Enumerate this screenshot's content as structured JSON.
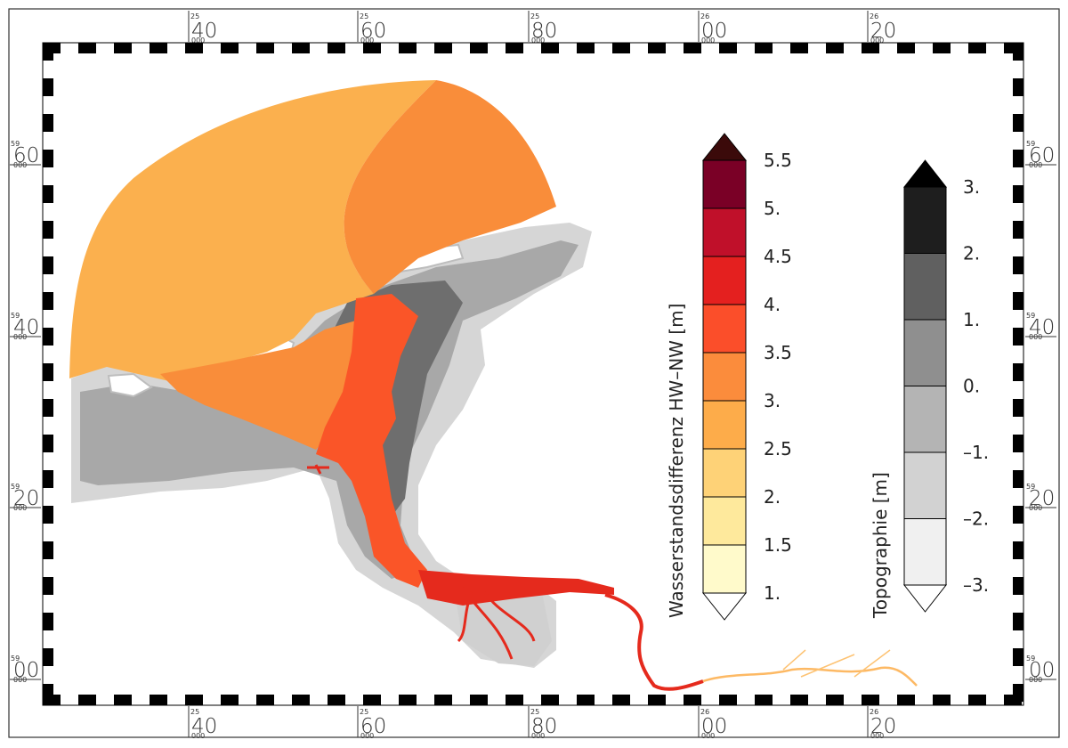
{
  "map": {
    "x_ticks": [
      {
        "prefix": "25",
        "value": "40",
        "sub": "000"
      },
      {
        "prefix": "25",
        "value": "60",
        "sub": "000"
      },
      {
        "prefix": "25",
        "value": "80",
        "sub": "000"
      },
      {
        "prefix": "26",
        "value": "00",
        "sub": "000"
      },
      {
        "prefix": "26",
        "value": "20",
        "sub": "000"
      }
    ],
    "y_ticks": [
      {
        "prefix": "59",
        "value": "60",
        "sub": "000"
      },
      {
        "prefix": "59",
        "value": "40",
        "sub": "000"
      },
      {
        "prefix": "59",
        "value": "20",
        "sub": "000"
      },
      {
        "prefix": "59",
        "value": "00",
        "sub": "000"
      }
    ]
  },
  "legend_water": {
    "title": "Wasserstandsdifferenz  HW–NW  [m]",
    "labels": [
      "5.5",
      "5.",
      "4.5",
      "4.",
      "3.5",
      "3.",
      "2.5",
      "2.",
      "1.5",
      "1."
    ],
    "colors": [
      "#7a0026",
      "#c0102a",
      "#e4201f",
      "#fb4e2a",
      "#fb8c3c",
      "#fdac4a",
      "#fed277",
      "#fee99c",
      "#fffacb"
    ],
    "top_arrow_color": "#3b0a0a",
    "bottom_arrow_color": "#ffffff"
  },
  "legend_topo": {
    "title": "Topographie  [m]",
    "labels": [
      "3.",
      "2.",
      "1.",
      "0.",
      "–1.",
      "–2.",
      "–3."
    ],
    "colors": [
      "#1e1e1e",
      "#606060",
      "#8f8f8f",
      "#b4b4b4",
      "#d2d2d2",
      "#f0f0f0"
    ],
    "top_arrow_color": "#000000",
    "bottom_arrow_color": "#ffffff"
  }
}
